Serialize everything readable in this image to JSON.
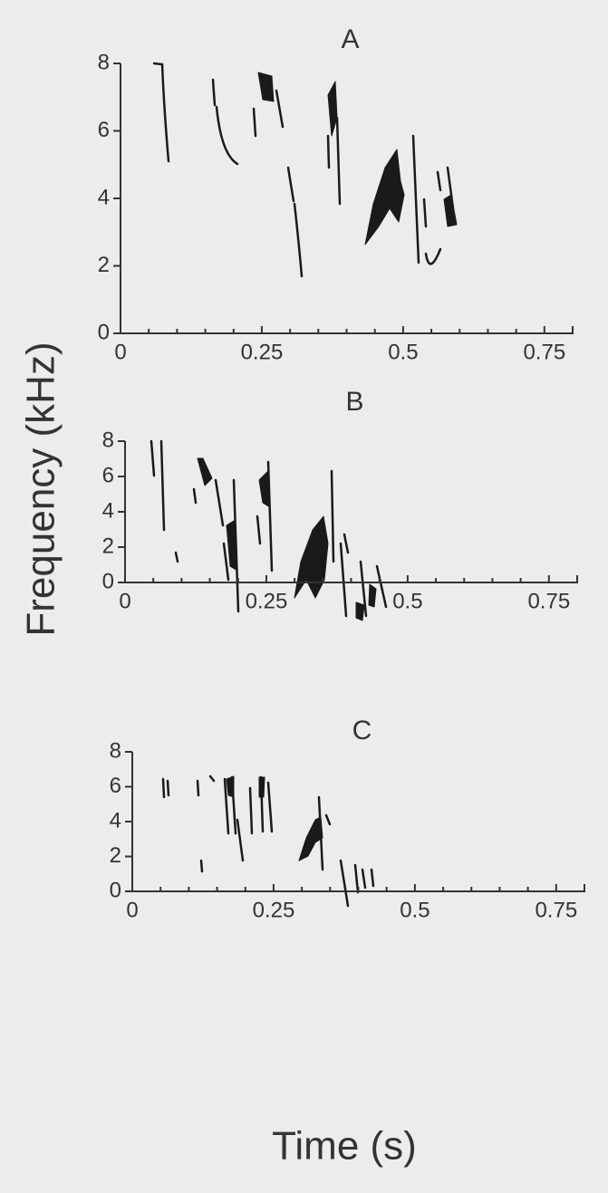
{
  "figure": {
    "ylabel": "Frequency (kHz)",
    "xlabel": "Time (s)"
  },
  "chart_data": [
    {
      "type": "spectrogram",
      "title": "A",
      "xlim": [
        0,
        0.8
      ],
      "xticks": [
        0,
        0.25,
        0.5,
        0.75
      ],
      "ylim": [
        0,
        8
      ],
      "yticks": [
        0,
        2,
        4,
        6,
        8
      ]
    },
    {
      "type": "spectrogram",
      "title": "B",
      "xlim": [
        0,
        0.8
      ],
      "xticks": [
        0,
        0.25,
        0.5,
        0.75
      ],
      "ylim": [
        0,
        8
      ],
      "yticks": [
        0,
        2,
        4,
        6,
        8
      ]
    },
    {
      "type": "spectrogram",
      "title": "C",
      "xlim": [
        0,
        0.8
      ],
      "xticks": [
        0,
        0.25,
        0.5,
        0.75
      ],
      "ylim": [
        0,
        8
      ],
      "yticks": [
        0,
        2,
        4,
        6,
        8
      ]
    }
  ]
}
